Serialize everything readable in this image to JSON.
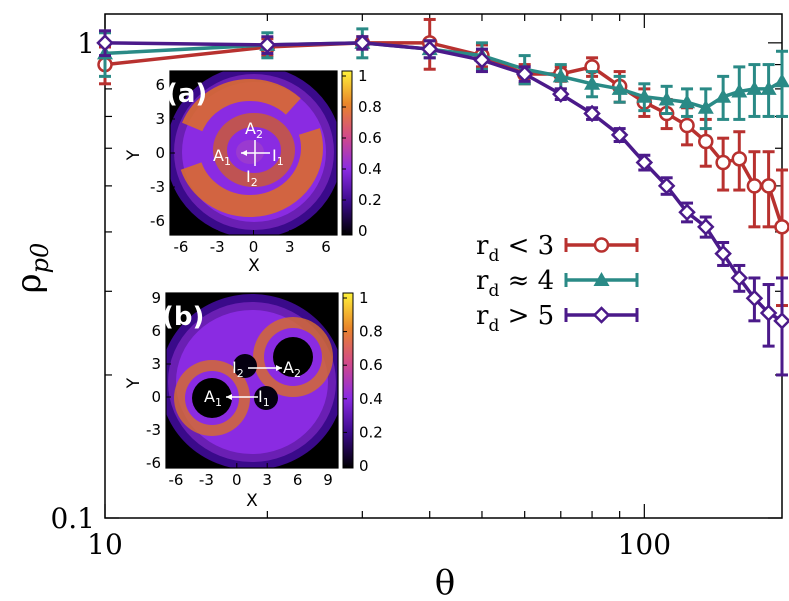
{
  "chart_data": {
    "type": "line",
    "title": "",
    "xlabel": "θ",
    "ylabel": "ρ",
    "ylabel_sub": "p0",
    "x_scale": "log",
    "y_scale": "log",
    "xlim": [
      10,
      180
    ],
    "ylim": [
      0.1,
      1.15
    ],
    "x_ticks": [
      {
        "value": 10,
        "label": "10"
      },
      {
        "value": 100,
        "label": "100"
      }
    ],
    "y_ticks": [
      {
        "value": 0.1,
        "label": "0.1"
      },
      {
        "value": 1,
        "label": "1"
      }
    ],
    "legend_position": "center-right",
    "series": [
      {
        "name": "r_d < 3",
        "legend": {
          "prefix": "r",
          "sub": "d",
          "rel": " < 3"
        },
        "color": "#b8312f",
        "marker": "open-circle",
        "x": [
          10,
          20,
          30,
          40,
          50,
          60,
          70,
          80,
          90,
          100,
          110,
          120,
          130,
          140,
          150,
          160,
          170,
          180
        ],
        "y": [
          0.9,
          0.98,
          1.0,
          1.0,
          0.94,
          0.86,
          0.86,
          0.89,
          0.81,
          0.75,
          0.71,
          0.67,
          0.62,
          0.56,
          0.57,
          0.5,
          0.5,
          0.41
        ],
        "err": [
          0.08,
          0.04,
          0.03,
          0.12,
          0.05,
          0.04,
          0.03,
          0.04,
          0.06,
          0.05,
          0.05,
          0.06,
          0.07,
          0.07,
          0.08,
          0.09,
          0.09,
          0.13
        ]
      },
      {
        "name": "r_d ≈ 4",
        "legend": {
          "prefix": "r",
          "sub": "d",
          "rel": " ≈ 4"
        },
        "color": "#2a8a86",
        "marker": "filled-triangle",
        "x": [
          10,
          20,
          30,
          40,
          50,
          60,
          70,
          80,
          90,
          100,
          110,
          120,
          130,
          140,
          150,
          160,
          170,
          180
        ],
        "y": [
          0.95,
          0.99,
          1.0,
          0.97,
          0.94,
          0.88,
          0.85,
          0.82,
          0.8,
          0.77,
          0.76,
          0.75,
          0.73,
          0.77,
          0.79,
          0.8,
          0.8,
          0.83
        ],
        "err": [
          0.1,
          0.06,
          0.07,
          0.04,
          0.06,
          0.06,
          0.05,
          0.05,
          0.05,
          0.05,
          0.05,
          0.05,
          0.07,
          0.08,
          0.1,
          0.1,
          0.1,
          0.13
        ]
      },
      {
        "name": "r_d > 5",
        "legend": {
          "prefix": "r",
          "sub": "d",
          "rel": " > 5"
        },
        "color": "#4b1a8a",
        "marker": "open-diamond",
        "x": [
          10,
          20,
          30,
          40,
          50,
          60,
          70,
          80,
          90,
          100,
          110,
          120,
          130,
          140,
          150,
          160,
          170,
          180
        ],
        "y": [
          1.0,
          0.99,
          1.0,
          0.97,
          0.92,
          0.86,
          0.78,
          0.71,
          0.64,
          0.56,
          0.5,
          0.44,
          0.41,
          0.36,
          0.32,
          0.29,
          0.27,
          0.26
        ],
        "err": [
          0.06,
          0.04,
          0.03,
          0.04,
          0.05,
          0.03,
          0.02,
          0.02,
          0.02,
          0.02,
          0.02,
          0.02,
          0.02,
          0.02,
          0.02,
          0.03,
          0.04,
          0.06
        ]
      }
    ],
    "insets": [
      {
        "tag": "(a)",
        "xlabel": "X",
        "ylabel": "Y",
        "x_ticks": [
          "-6",
          "-3",
          "0",
          "3",
          "6"
        ],
        "y_ticks": [
          "6",
          "3",
          "0",
          "-3",
          "-6"
        ],
        "colorbar_ticks": [
          "1",
          "0.8",
          "0.6",
          "0.4",
          "0.2",
          "0"
        ],
        "annotations": [
          "A",
          "1",
          "A",
          "2",
          "I",
          "1",
          "I",
          "2"
        ]
      },
      {
        "tag": "(b)",
        "xlabel": "X",
        "ylabel": "Y",
        "x_ticks": [
          "-6",
          "-3",
          "0",
          "3",
          "6",
          "9"
        ],
        "y_ticks": [
          "9",
          "6",
          "3",
          "0",
          "-3",
          "-6"
        ],
        "colorbar_ticks": [
          "1",
          "0.8",
          "0.6",
          "0.4",
          "0.2",
          "0"
        ],
        "annotations": [
          "A",
          "1",
          "A",
          "2",
          "I",
          "1",
          "I",
          "2"
        ]
      }
    ]
  }
}
